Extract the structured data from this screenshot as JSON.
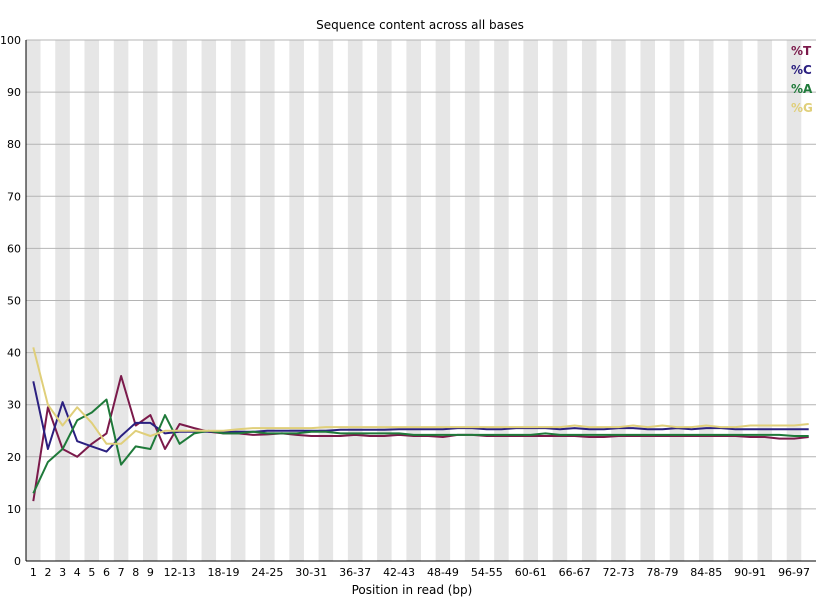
{
  "chart_data": {
    "type": "line",
    "title": "Sequence content across all bases",
    "xlabel": "Position in read (bp)",
    "ylabel": "",
    "ylim": [
      0,
      100
    ],
    "yticks": [
      0,
      10,
      20,
      30,
      40,
      50,
      60,
      70,
      80,
      90,
      100
    ],
    "grid": true,
    "legend_position": "top-right",
    "categories": [
      "1",
      "2",
      "3",
      "4",
      "5",
      "6",
      "7",
      "8",
      "9",
      "10-11",
      "12-13",
      "14-15",
      "16-17",
      "18-19",
      "20-21",
      "22-23",
      "24-25",
      "26-27",
      "28-29",
      "30-31",
      "32-33",
      "34-35",
      "36-37",
      "38-39",
      "40-41",
      "42-43",
      "44-45",
      "46-47",
      "48-49",
      "50-51",
      "52-53",
      "54-55",
      "56-57",
      "58-59",
      "60-61",
      "62-63",
      "64-65",
      "66-67",
      "68-69",
      "70-71",
      "72-73",
      "74-75",
      "76-77",
      "78-79",
      "80-81",
      "82-83",
      "84-85",
      "86-87",
      "88-89",
      "90-91",
      "92-93",
      "94-95",
      "96-97",
      "98-99"
    ],
    "tick_labels": [
      "1",
      "2",
      "3",
      "4",
      "5",
      "6",
      "7",
      "8",
      "9",
      "",
      "12-13",
      "",
      "",
      "18-19",
      "",
      "",
      "24-25",
      "",
      "",
      "30-31",
      "",
      "",
      "36-37",
      "",
      "",
      "42-43",
      "",
      "",
      "48-49",
      "",
      "",
      "54-55",
      "",
      "",
      "60-61",
      "",
      "",
      "66-67",
      "",
      "",
      "72-73",
      "",
      "",
      "78-79",
      "",
      "",
      "84-85",
      "",
      "",
      "90-91",
      "",
      "",
      "96-97",
      ""
    ],
    "series": [
      {
        "name": "%T",
        "color": "#7b1a4b",
        "values": [
          11.5,
          29.5,
          21.5,
          20,
          22.5,
          24.5,
          35.5,
          26,
          28,
          21.5,
          26.3,
          25.5,
          24.8,
          24.5,
          24.5,
          24.2,
          24.3,
          24.5,
          24.2,
          24,
          24,
          24,
          24.2,
          24,
          24,
          24.2,
          24,
          24,
          23.8,
          24.2,
          24.2,
          24,
          24,
          24,
          24,
          24,
          24,
          24,
          23.8,
          23.8,
          24,
          24,
          24,
          24,
          24,
          24,
          24,
          24,
          24,
          23.8,
          23.8,
          23.5,
          23.5,
          23.8
        ]
      },
      {
        "name": "%C",
        "color": "#2b2080",
        "values": [
          34.5,
          21.5,
          30.5,
          23,
          22,
          21,
          24,
          26.5,
          26.5,
          24.5,
          24.8,
          24.8,
          24.8,
          24.8,
          24.8,
          24.8,
          25,
          25,
          25,
          25,
          25,
          25.2,
          25.2,
          25.2,
          25.2,
          25.3,
          25.3,
          25.3,
          25.3,
          25.5,
          25.5,
          25.3,
          25.3,
          25.5,
          25.5,
          25.5,
          25.3,
          25.5,
          25.3,
          25.3,
          25.5,
          25.5,
          25.3,
          25.3,
          25.5,
          25.3,
          25.5,
          25.5,
          25.3,
          25.3,
          25.3,
          25.3,
          25.3,
          25.3
        ]
      },
      {
        "name": "%A",
        "color": "#1f7a3a",
        "values": [
          13,
          19,
          21.5,
          27,
          28.5,
          31,
          18.5,
          22,
          21.5,
          28,
          22.5,
          24.5,
          25,
          24.5,
          24.5,
          24.8,
          24.5,
          24.5,
          24.5,
          24.8,
          24.8,
          24.5,
          24.5,
          24.5,
          24.5,
          24.5,
          24.2,
          24.2,
          24.2,
          24.2,
          24.2,
          24.2,
          24.2,
          24.2,
          24.2,
          24.5,
          24.2,
          24.2,
          24.2,
          24.2,
          24.2,
          24.2,
          24.2,
          24.2,
          24.2,
          24.2,
          24.2,
          24.2,
          24.2,
          24.2,
          24.2,
          24.2,
          24,
          24
        ]
      },
      {
        "name": "%G",
        "color": "#e0cf7a",
        "values": [
          41,
          30,
          26,
          29.5,
          26.5,
          22.5,
          22.5,
          25,
          24,
          25,
          25,
          25,
          25,
          25,
          25.3,
          25.5,
          25.5,
          25.5,
          25.5,
          25.5,
          25.7,
          25.7,
          25.7,
          25.7,
          25.7,
          25.7,
          25.7,
          25.7,
          25.7,
          25.7,
          25.7,
          25.7,
          25.7,
          25.7,
          25.7,
          25.7,
          25.7,
          26,
          25.7,
          25.7,
          25.7,
          26,
          25.7,
          26,
          25.7,
          25.7,
          26,
          25.7,
          25.7,
          26,
          26,
          26,
          26,
          26.3
        ]
      }
    ]
  }
}
